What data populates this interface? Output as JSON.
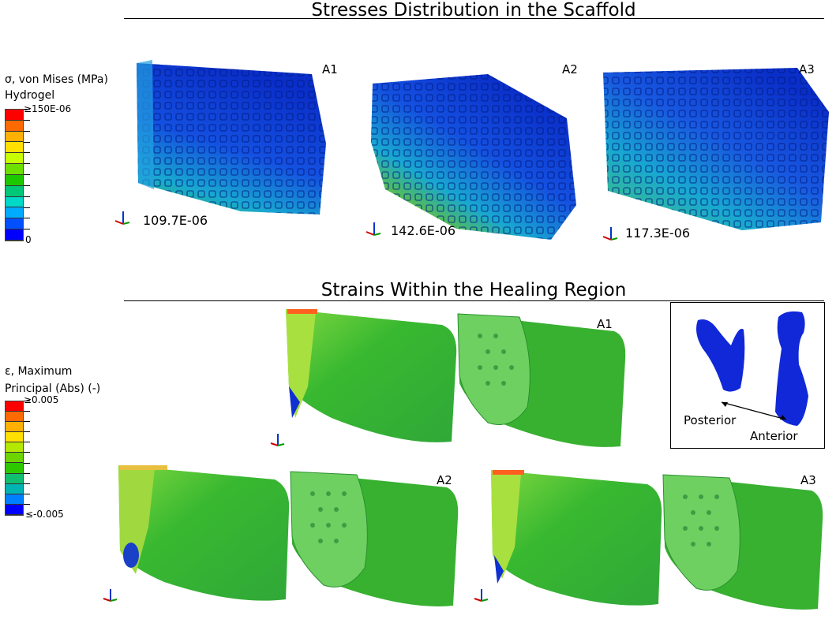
{
  "stress_section": {
    "title": "Stresses Distribution in the Scaffold",
    "legend": {
      "line1": "σ, von Mises (MPa)",
      "line2": "Hydrogel",
      "max_label": "≥150E-06",
      "min_label": "0",
      "colors": [
        "#ff0000",
        "#ff6a00",
        "#ffb000",
        "#ffe000",
        "#c8ff00",
        "#6ee000",
        "#1ec800",
        "#00c878",
        "#00d8c8",
        "#00aaff",
        "#0050ff",
        "#0000ff"
      ]
    },
    "panels": [
      {
        "label": "A1",
        "max_value": "109.7E-06"
      },
      {
        "label": "A2",
        "max_value": "142.6E-06"
      },
      {
        "label": "A3",
        "max_value": "117.3E-06"
      }
    ]
  },
  "strain_section": {
    "title": "Strains Within the Healing Region",
    "legend": {
      "line1": "ε, Maximum",
      "line2": "Principal (Abs) (-)",
      "max_label": "≥0.005",
      "min_label": "≤-0.005",
      "colors": [
        "#ff0000",
        "#ff6a00",
        "#ffb000",
        "#ffe000",
        "#b4e800",
        "#6ed400",
        "#2ec800",
        "#10c070",
        "#00b4b4",
        "#0080ff",
        "#0000ff"
      ]
    },
    "panels": [
      {
        "label": "A1"
      },
      {
        "label": "A2"
      },
      {
        "label": "A3"
      }
    ],
    "inset": {
      "posterior_label": "Posterior",
      "anterior_label": "Anterior"
    }
  }
}
